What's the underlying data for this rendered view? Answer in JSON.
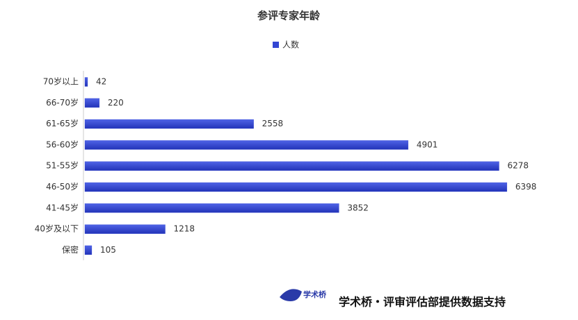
{
  "chart_data": {
    "type": "bar",
    "orientation": "horizontal",
    "title": "参评专家年龄",
    "categories": [
      "70岁以上",
      "66-70岁",
      "61-65岁",
      "56-60岁",
      "51-55岁",
      "46-50岁",
      "41-45岁",
      "40岁及以下",
      "保密"
    ],
    "series": [
      {
        "name": "人数",
        "color": "#3346d3",
        "values": [
          42,
          220,
          2558,
          4901,
          6278,
          6398,
          3852,
          1218,
          105
        ]
      }
    ],
    "xlim": [
      0,
      7000
    ],
    "legend": "top"
  },
  "footer": {
    "logo_text": "学术桥",
    "text": "学术桥・评审评估部提供数据支持"
  }
}
